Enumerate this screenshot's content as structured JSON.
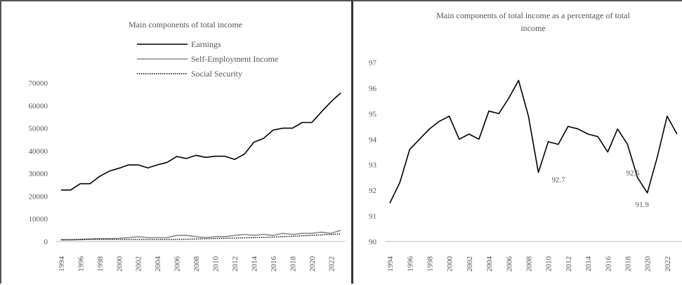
{
  "chart_data": [
    {
      "type": "line",
      "title": "Main components  of total income",
      "xlabel": "",
      "ylabel": "",
      "x": [
        1994,
        1995,
        1996,
        1997,
        1998,
        1999,
        2000,
        2001,
        2002,
        2003,
        2004,
        2005,
        2006,
        2007,
        2008,
        2009,
        2010,
        2011,
        2012,
        2013,
        2014,
        2015,
        2016,
        2017,
        2018,
        2019,
        2020,
        2021,
        2022,
        2023
      ],
      "x_tick_labels": [
        "1994",
        "1996",
        "1998",
        "2000",
        "2002",
        "2004",
        "2006",
        "2008",
        "2010",
        "2012",
        "2014",
        "2016",
        "2018",
        "2020",
        "2022"
      ],
      "ylim": [
        0,
        70000
      ],
      "y_tick_labels": [
        "0",
        "10000",
        "20000",
        "30000",
        "40000",
        "50000",
        "60000",
        "70000"
      ],
      "legend_position": "top",
      "series": [
        {
          "name": "Earnings",
          "color": "#000000",
          "style": "solid",
          "values": [
            22700,
            22700,
            25500,
            25500,
            28700,
            31000,
            32300,
            33800,
            33800,
            32500,
            33800,
            34900,
            37500,
            36600,
            38000,
            37100,
            37600,
            37600,
            36200,
            38500,
            43800,
            45500,
            49200,
            50000,
            50000,
            52500,
            52500,
            57200,
            61700,
            65500
          ]
        },
        {
          "name": "Self-Employment Income",
          "color": "#888888",
          "style": "solid",
          "values": [
            800,
            800,
            900,
            1100,
            1300,
            1300,
            1400,
            1700,
            2100,
            1700,
            1700,
            1700,
            2700,
            2700,
            2100,
            1700,
            2100,
            2100,
            2700,
            3100,
            2700,
            3100,
            2700,
            3600,
            3100,
            3600,
            3600,
            4100,
            3600,
            4900
          ]
        },
        {
          "name": "Social Security",
          "color": "#000000",
          "style": "dotted",
          "values": [
            700,
            700,
            800,
            900,
            900,
            900,
            900,
            900,
            900,
            900,
            900,
            900,
            900,
            1000,
            1100,
            1200,
            1300,
            1400,
            1500,
            1600,
            1700,
            1800,
            1900,
            2100,
            2300,
            2500,
            2700,
            2900,
            3100,
            3300
          ]
        }
      ]
    },
    {
      "type": "line",
      "title": "Main components  of total income as a percentage of total income",
      "xlabel": "",
      "ylabel": "",
      "x": [
        1994,
        1995,
        1996,
        1997,
        1998,
        1999,
        2000,
        2001,
        2002,
        2003,
        2004,
        2005,
        2006,
        2007,
        2008,
        2009,
        2010,
        2011,
        2012,
        2013,
        2014,
        2015,
        2016,
        2017,
        2018,
        2019,
        2020,
        2021,
        2022,
        2023
      ],
      "x_tick_labels": [
        "1994",
        "1996",
        "1998",
        "2000",
        "2002",
        "2004",
        "2006",
        "2008",
        "2010",
        "2012",
        "2014",
        "2016",
        "2018",
        "2020",
        "2022"
      ],
      "ylim": [
        90,
        97
      ],
      "y_tick_labels": [
        "90",
        "91",
        "92",
        "93",
        "94",
        "95",
        "96",
        "97"
      ],
      "series": [
        {
          "color": "#000000",
          "style": "solid",
          "values": [
            91.5,
            92.3,
            93.6,
            94.0,
            94.4,
            94.7,
            94.9,
            94.0,
            94.2,
            94.0,
            95.1,
            95.0,
            95.6,
            96.3,
            94.9,
            92.7,
            93.9,
            93.8,
            94.5,
            94.4,
            94.2,
            94.1,
            93.5,
            94.4,
            93.8,
            92.5,
            91.9,
            93.3,
            94.9,
            94.2
          ]
        }
      ],
      "annotations": [
        {
          "x": 2009,
          "text": "92.7"
        },
        {
          "x": 2019,
          "text": "92.5"
        },
        {
          "x": 2020,
          "text": "91.9"
        }
      ]
    }
  ]
}
